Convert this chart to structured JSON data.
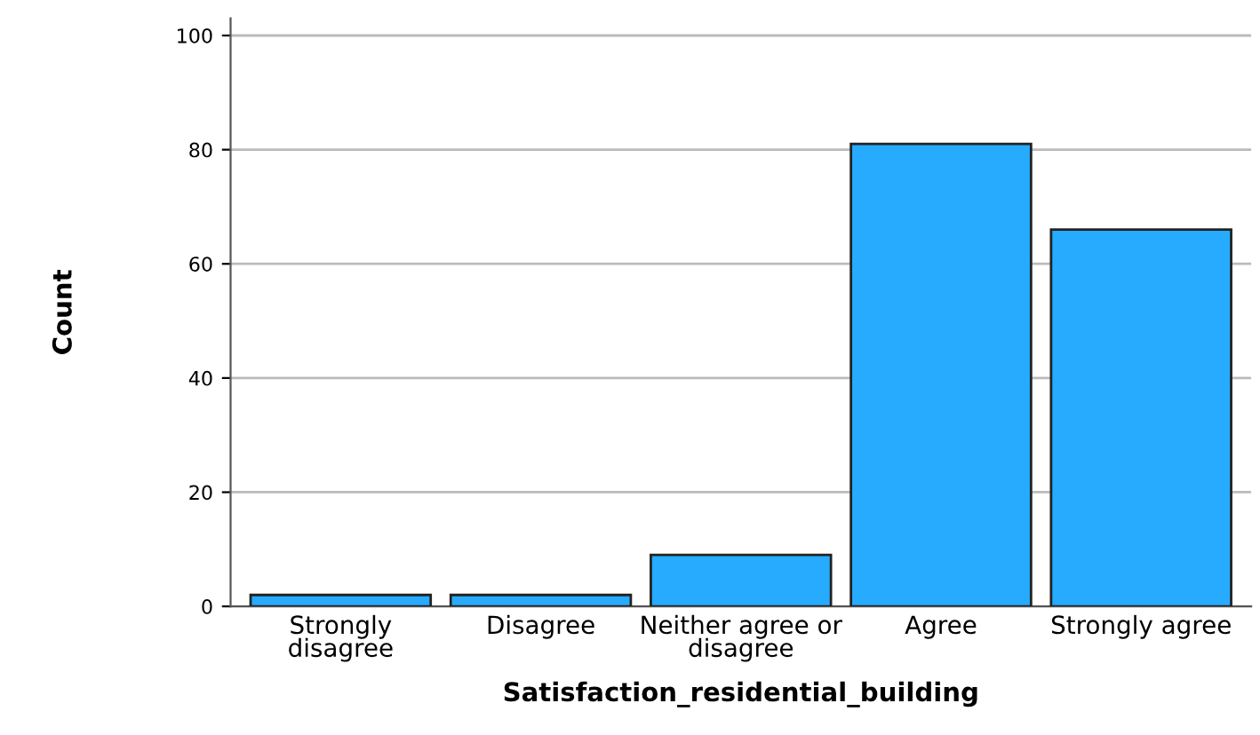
{
  "chart_data": {
    "type": "bar",
    "xlabel": "Satisfaction_residential_building",
    "ylabel": "Count",
    "categories": [
      "Strongly\ndisagree",
      "Disagree",
      "Neither agree or\ndisagree",
      "Agree",
      "Strongly agree"
    ],
    "values": [
      2,
      2,
      9,
      81,
      66
    ],
    "color": "#26abff",
    "ylim": [
      0,
      103
    ],
    "yticks": [
      0,
      20,
      40,
      60,
      80,
      100
    ],
    "grid": "y"
  }
}
